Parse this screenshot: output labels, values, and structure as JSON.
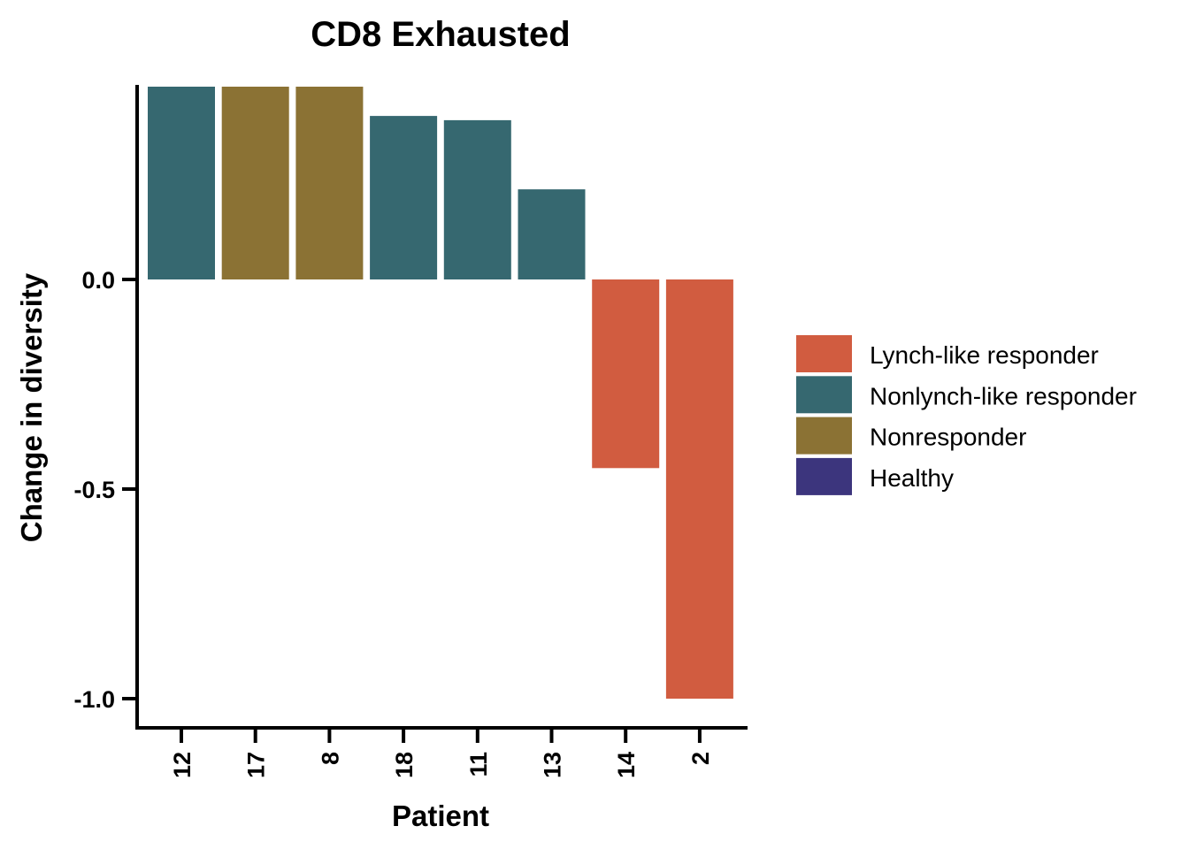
{
  "chart_data": {
    "type": "bar",
    "title": "CD8 Exhausted",
    "xlabel": "Patient",
    "ylabel": "Change in diversity",
    "categories": [
      "12",
      "17",
      "8",
      "18",
      "11",
      "13",
      "14",
      "2"
    ],
    "values": [
      0.46,
      0.46,
      0.46,
      0.39,
      0.38,
      0.215,
      -0.45,
      -1.0
    ],
    "groups": [
      "Nonlynch-like responder",
      "Nonresponder",
      "Nonresponder",
      "Nonlynch-like responder",
      "Nonlynch-like responder",
      "Nonlynch-like responder",
      "Lynch-like responder",
      "Lynch-like responder"
    ],
    "yticks": [
      0.0,
      -0.5,
      -1.0
    ],
    "ytick_labels": [
      "0.0",
      "-0.5",
      "-1.0"
    ],
    "ylim": [
      -1.05,
      0.46
    ],
    "grid": false,
    "legend": {
      "placement": "right",
      "entries": [
        {
          "label": "Lynch-like responder",
          "color": "#D15C40"
        },
        {
          "label": "Nonlynch-like responder",
          "color": "#366870"
        },
        {
          "label": "Nonresponder",
          "color": "#8B7234"
        },
        {
          "label": "Healthy",
          "color": "#3C357D"
        }
      ]
    }
  }
}
